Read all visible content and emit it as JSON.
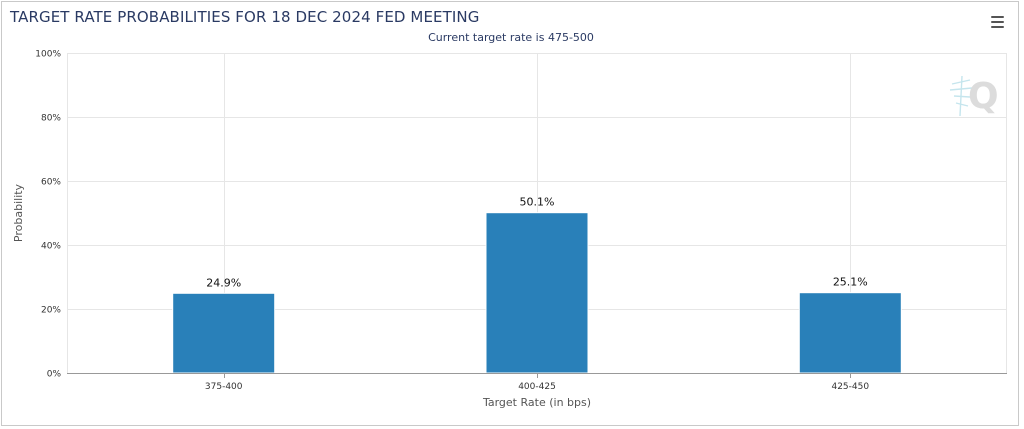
{
  "header": {
    "title": "TARGET RATE PROBABILITIES FOR 18 DEC 2024 FED MEETING",
    "subtitle": "Current target rate is 475-500",
    "menu_icon": "hamburger-menu-icon",
    "watermark_icon": "q-logo-icon"
  },
  "colors": {
    "bar": "#2980b9",
    "grid": "#e6e6e6",
    "axis": "#999999",
    "title": "#2a3a63"
  },
  "chart_data": {
    "type": "bar",
    "title": "TARGET RATE PROBABILITIES FOR 18 DEC 2024 FED MEETING",
    "subtitle": "Current target rate is 475-500",
    "categories": [
      "375-400",
      "400-425",
      "425-450"
    ],
    "values": [
      24.9,
      50.1,
      25.1
    ],
    "data_labels": [
      "24.9%",
      "50.1%",
      "25.1%"
    ],
    "xlabel": "Target Rate (in bps)",
    "ylabel": "Probability",
    "ylim": [
      0,
      100
    ],
    "yticks": [
      0,
      20,
      40,
      60,
      80,
      100
    ],
    "ytick_labels": [
      "0%",
      "20%",
      "40%",
      "60%",
      "80%",
      "100%"
    ],
    "grid": true,
    "legend": "none"
  }
}
